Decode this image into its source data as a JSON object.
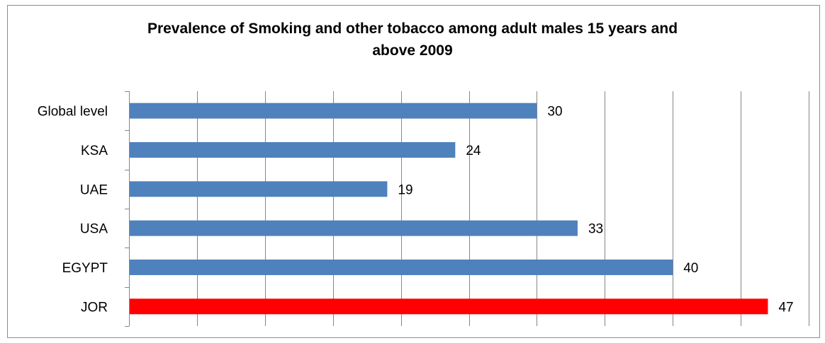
{
  "chart_data": {
    "type": "bar",
    "orientation": "horizontal",
    "title_line1": "Prevalence  of Smoking and other tobacco among adult males 15 years and",
    "title_line2": "above 2009",
    "categories": [
      "Global level",
      "KSA",
      "UAE",
      "USA",
      "EGYPT",
      "JOR"
    ],
    "values": [
      30,
      24,
      19,
      33,
      40,
      47
    ],
    "bar_colors": [
      "#4f81bd",
      "#4f81bd",
      "#4f81bd",
      "#4f81bd",
      "#4f81bd",
      "#ff0000"
    ],
    "xlim": [
      0,
      50
    ],
    "x_gridline_step": 5,
    "grid": true,
    "xlabel": "",
    "ylabel": "",
    "legend": "none"
  }
}
